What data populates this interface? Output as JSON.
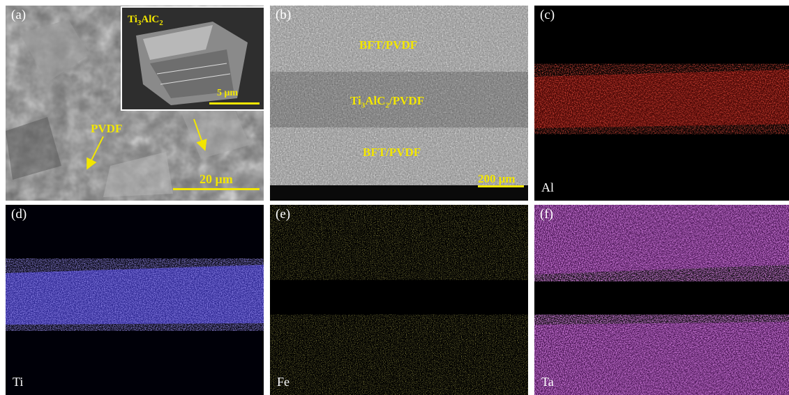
{
  "panels": {
    "a": {
      "label": "(a)",
      "inset_material": "Ti",
      "inset_material_sub1": "3",
      "inset_material_mid": "AlC",
      "inset_material_sub2": "2",
      "inset_scale": "5 μm",
      "arrow_label": "PVDF",
      "scale": "20 μm"
    },
    "b": {
      "label": "(b)",
      "layer_top": "BFT/PVDF",
      "layer_mid_a": "Ti",
      "layer_mid_sub1": "3",
      "layer_mid_b": "AlC",
      "layer_mid_sub2": "2",
      "layer_mid_c": "/PVDF",
      "layer_bottom": "BFT/PVDF",
      "scale": "200 μm"
    },
    "c": {
      "label": "(c)",
      "element": "Al",
      "color": "#c8140f"
    },
    "d": {
      "label": "(d)",
      "element": "Ti",
      "color": "#4a3fd0"
    },
    "e": {
      "label": "(e)",
      "element": "Fe",
      "color": "#6e6a18"
    },
    "f": {
      "label": "(f)",
      "element": "Ta",
      "color": "#b23ac4"
    }
  },
  "colors": {
    "annotation": "#f2e600",
    "background": "#000000"
  }
}
